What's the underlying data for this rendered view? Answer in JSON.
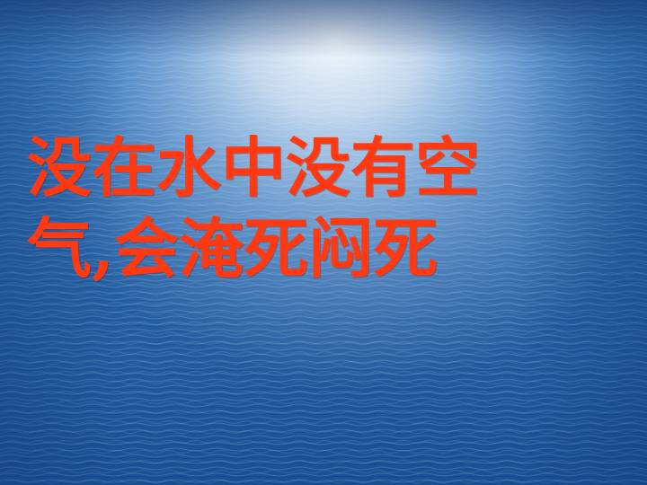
{
  "slide": {
    "headline_lines": [
      "没在水中没有空",
      "气,会淹死闷死"
    ]
  },
  "colors": {
    "headline_text": "#ff3a12",
    "water_dark": "#153f80",
    "water_mid": "#2f72b8",
    "water_light": "#dbe9f7"
  },
  "background": {
    "description_kind": "water-surface-photo"
  }
}
